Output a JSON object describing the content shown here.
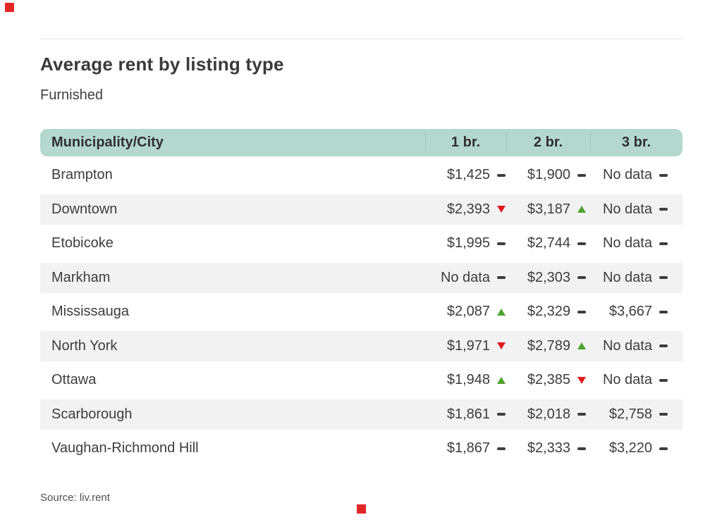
{
  "header": {
    "title": "Average rent by listing type",
    "subtitle": "Furnished"
  },
  "table": {
    "headers": [
      "Municipality/City",
      "1 br.",
      "2 br.",
      "3 br."
    ],
    "rows": [
      {
        "city": "Brampton",
        "br1": "$1,425",
        "br1_trend": "flat",
        "br2": "$1,900",
        "br2_trend": "flat",
        "br3": "No data",
        "br3_trend": "flat"
      },
      {
        "city": "Downtown",
        "br1": "$2,393",
        "br1_trend": "down",
        "br2": "$3,187",
        "br2_trend": "up",
        "br3": "No data",
        "br3_trend": "flat"
      },
      {
        "city": "Etobicoke",
        "br1": "$1,995",
        "br1_trend": "flat",
        "br2": "$2,744",
        "br2_trend": "flat",
        "br3": "No data",
        "br3_trend": "flat"
      },
      {
        "city": "Markham",
        "br1": "No data",
        "br1_trend": "flat",
        "br2": "$2,303",
        "br2_trend": "flat",
        "br3": "No data",
        "br3_trend": "flat"
      },
      {
        "city": "Mississauga",
        "br1": "$2,087",
        "br1_trend": "up",
        "br2": "$2,329",
        "br2_trend": "flat",
        "br3": "$3,667",
        "br3_trend": "flat"
      },
      {
        "city": "North York",
        "br1": "$1,971",
        "br1_trend": "down",
        "br2": "$2,789",
        "br2_trend": "up",
        "br3": "No data",
        "br3_trend": "flat"
      },
      {
        "city": "Ottawa",
        "br1": "$1,948",
        "br1_trend": "up",
        "br2": "$2,385",
        "br2_trend": "down",
        "br3": "No data",
        "br3_trend": "flat"
      },
      {
        "city": "Scarborough",
        "br1": "$1,861",
        "br1_trend": "flat",
        "br2": "$2,018",
        "br2_trend": "flat",
        "br3": "$2,758",
        "br3_trend": "flat"
      },
      {
        "city": "Vaughan-Richmond Hill",
        "br1": "$1,867",
        "br1_trend": "flat",
        "br2": "$2,333",
        "br2_trend": "flat",
        "br3": "$3,220",
        "br3_trend": "flat"
      }
    ]
  },
  "footer": {
    "source": "Source: liv.rent"
  },
  "colors": {
    "brand_red": "#e32726",
    "header_bg": "#b5d8ce",
    "row_alt": "#f2f2f2",
    "trend_up": "#4da32f",
    "trend_down": "#e01b1b",
    "dash": "#3d3d3d"
  },
  "chart_data": {
    "type": "table",
    "title": "Average rent by listing type",
    "subtitle": "Furnished",
    "columns": [
      "Municipality/City",
      "1 br.",
      "2 br.",
      "3 br."
    ],
    "rows": [
      {
        "city": "Brampton",
        "br1": 1425,
        "br2": 1900,
        "br3": null
      },
      {
        "city": "Downtown",
        "br1": 2393,
        "br2": 3187,
        "br3": null
      },
      {
        "city": "Etobicoke",
        "br1": 1995,
        "br2": 2744,
        "br3": null
      },
      {
        "city": "Markham",
        "br1": null,
        "br2": 2303,
        "br3": null
      },
      {
        "city": "Mississauga",
        "br1": 2087,
        "br2": 2329,
        "br3": 3667
      },
      {
        "city": "North York",
        "br1": 1971,
        "br2": 2789,
        "br3": null
      },
      {
        "city": "Ottawa",
        "br1": 1948,
        "br2": 2385,
        "br3": null
      },
      {
        "city": "Scarborough",
        "br1": 1861,
        "br2": 2018,
        "br3": 2758
      },
      {
        "city": "Vaughan-Richmond Hill",
        "br1": 1867,
        "br2": 2333,
        "br3": 3220
      }
    ],
    "trends": [
      {
        "city": "Brampton",
        "br1": "flat",
        "br2": "flat",
        "br3": "flat"
      },
      {
        "city": "Downtown",
        "br1": "down",
        "br2": "up",
        "br3": "flat"
      },
      {
        "city": "Etobicoke",
        "br1": "flat",
        "br2": "flat",
        "br3": "flat"
      },
      {
        "city": "Markham",
        "br1": "flat",
        "br2": "flat",
        "br3": "flat"
      },
      {
        "city": "Mississauga",
        "br1": "up",
        "br2": "flat",
        "br3": "flat"
      },
      {
        "city": "North York",
        "br1": "down",
        "br2": "up",
        "br3": "flat"
      },
      {
        "city": "Ottawa",
        "br1": "up",
        "br2": "down",
        "br3": "flat"
      },
      {
        "city": "Scarborough",
        "br1": "flat",
        "br2": "flat",
        "br3": "flat"
      },
      {
        "city": "Vaughan-Richmond Hill",
        "br1": "flat",
        "br2": "flat",
        "br3": "flat"
      }
    ],
    "no_data_label": "No data",
    "source": "Source: liv.rent",
    "legend_position": "none",
    "grid": false
  }
}
